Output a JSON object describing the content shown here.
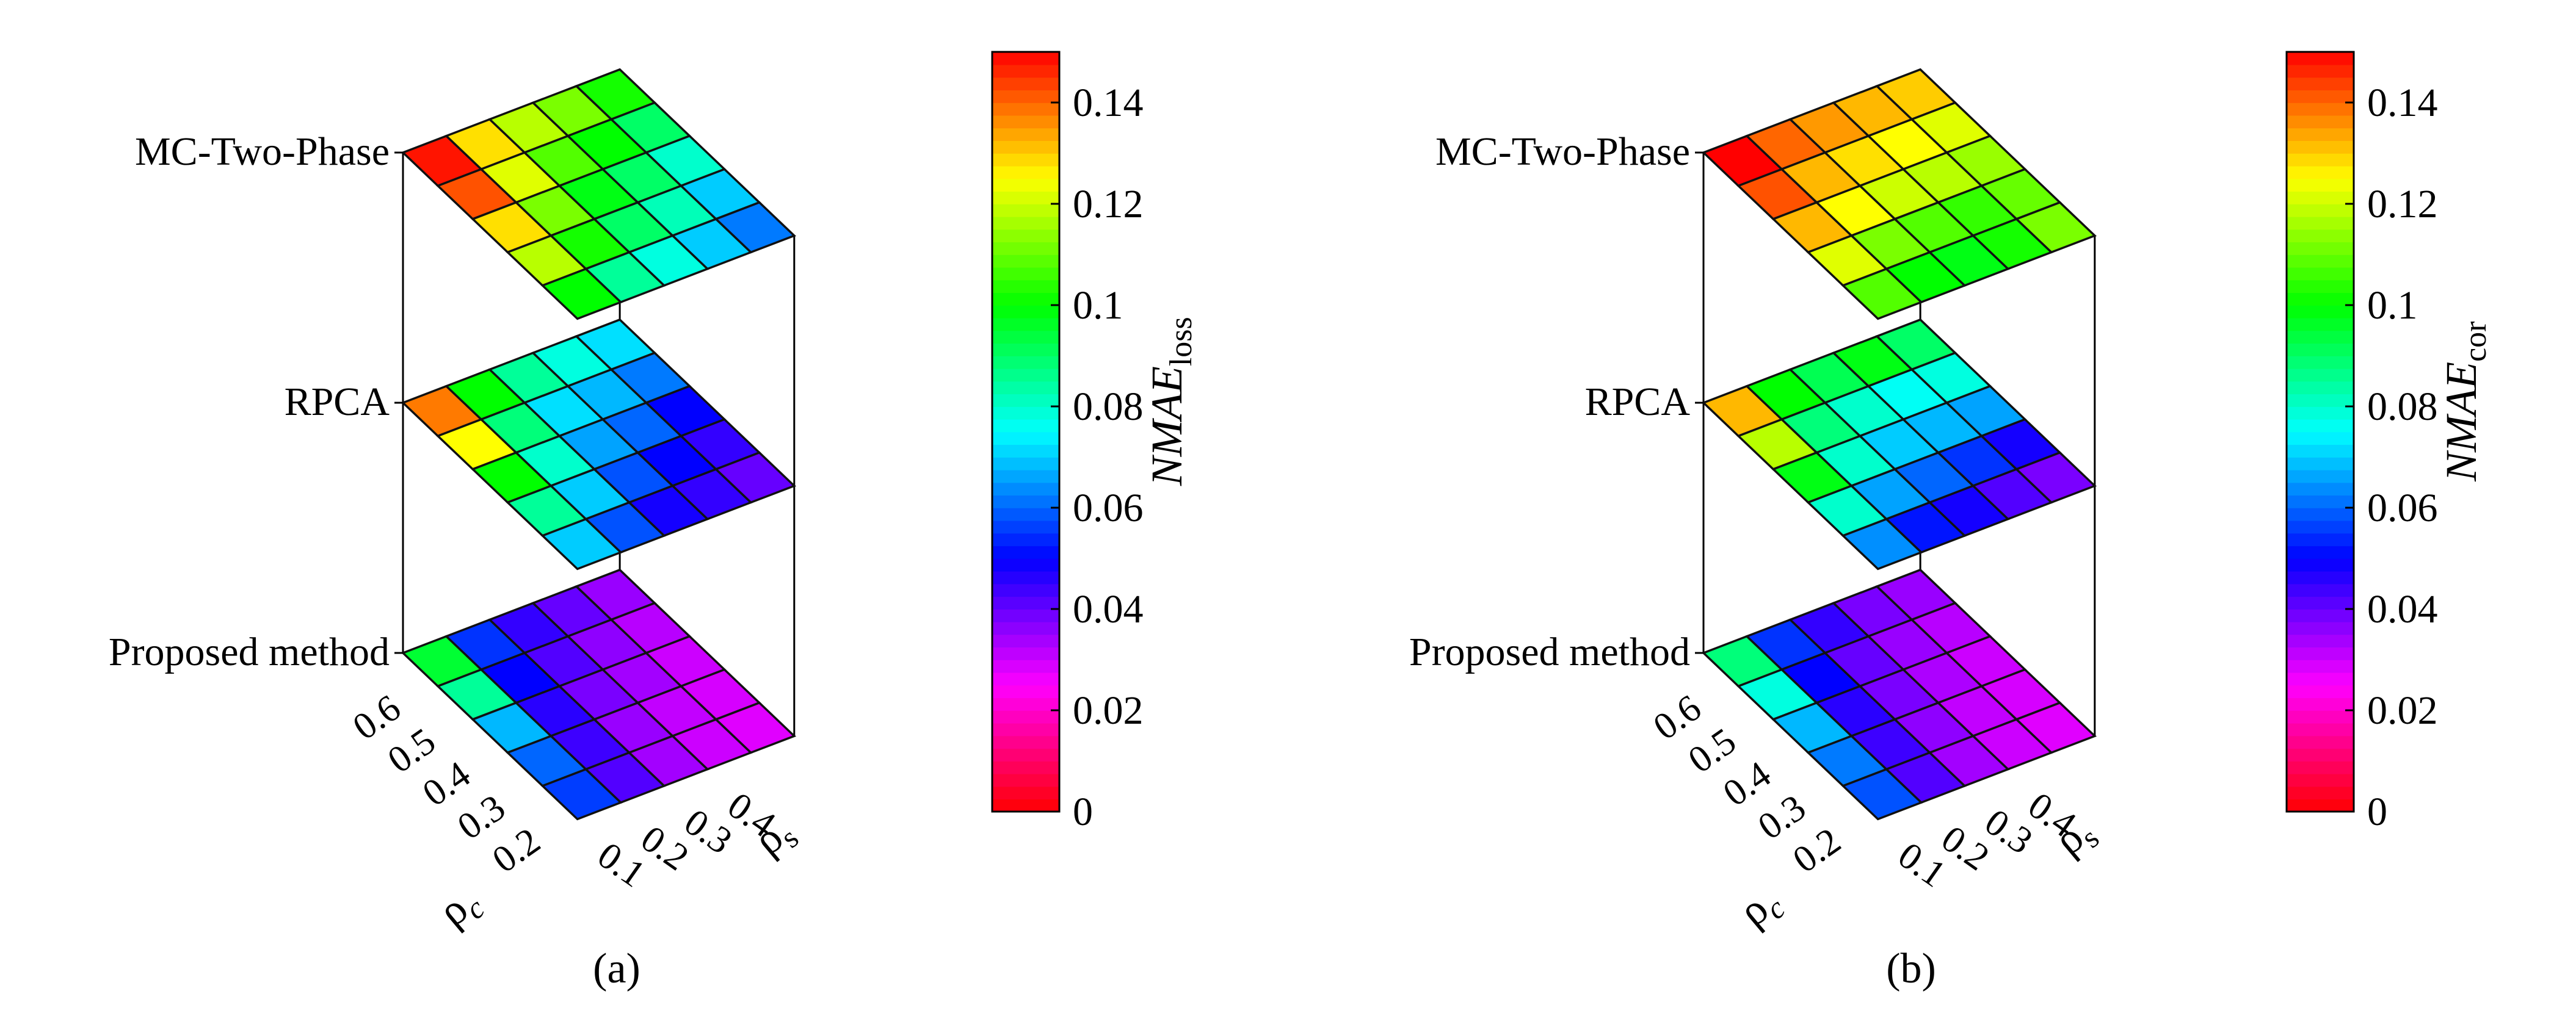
{
  "chart_data": [
    {
      "type": "heatmap",
      "subtitle": "(a)",
      "x_label": "ρ",
      "x_label_sub": "s",
      "y_label": "ρ",
      "y_label_sub": "c",
      "x_ticks": [
        "0.1",
        "0.2",
        "0.3",
        "0.4"
      ],
      "y_ticks": [
        "0.2",
        "0.3",
        "0.4",
        "0.5",
        "0.6"
      ],
      "colorbar": {
        "label": "NMAE",
        "label_sub": "loss",
        "range": [
          0,
          0.15
        ],
        "ticks": [
          "0",
          "0.02",
          "0.04",
          "0.06",
          "0.08",
          "0.1",
          "0.12",
          "0.14"
        ]
      },
      "layers": [
        {
          "name": "MC-Two-Phase",
          "note": "rows: rho_c 0.6 to 0.2; cols: rho_s 0.1 to 0.5",
          "values": [
            [
              0.148,
              0.128,
              0.118,
              0.112,
              0.102
            ],
            [
              0.142,
              0.122,
              0.108,
              0.1,
              0.09
            ],
            [
              0.128,
              0.112,
              0.098,
              0.09,
              0.08
            ],
            [
              0.118,
              0.102,
              0.09,
              0.082,
              0.07
            ],
            [
              0.1,
              0.085,
              0.078,
              0.07,
              0.062
            ]
          ]
        },
        {
          "name": "RPCA",
          "values": [
            [
              0.138,
              0.1,
              0.085,
              0.078,
              0.072
            ],
            [
              0.125,
              0.088,
              0.072,
              0.068,
              0.062
            ],
            [
              0.1,
              0.08,
              0.066,
              0.06,
              0.05
            ],
            [
              0.085,
              0.07,
              0.058,
              0.05,
              0.045
            ],
            [
              0.07,
              0.058,
              0.048,
              0.045,
              0.04
            ]
          ]
        },
        {
          "name": "Proposed method",
          "values": [
            [
              0.095,
              0.055,
              0.045,
              0.04,
              0.035
            ],
            [
              0.085,
              0.05,
              0.042,
              0.036,
              0.032
            ],
            [
              0.068,
              0.046,
              0.038,
              0.034,
              0.03
            ],
            [
              0.06,
              0.044,
              0.035,
              0.031,
              0.029
            ],
            [
              0.056,
              0.042,
              0.034,
              0.03,
              0.028
            ]
          ]
        }
      ]
    },
    {
      "type": "heatmap",
      "subtitle": "(b)",
      "x_label": "ρ",
      "x_label_sub": "s",
      "y_label": "ρ",
      "y_label_sub": "c",
      "x_ticks": [
        "0.1",
        "0.2",
        "0.3",
        "0.4"
      ],
      "y_ticks": [
        "0.2",
        "0.3",
        "0.4",
        "0.5",
        "0.6"
      ],
      "colorbar": {
        "label": "NMAE",
        "label_sub": "cor",
        "range": [
          0,
          0.15
        ],
        "ticks": [
          "0",
          "0.02",
          "0.04",
          "0.06",
          "0.08",
          "0.1",
          "0.12",
          "0.14"
        ]
      },
      "layers": [
        {
          "name": "MC-Two-Phase",
          "values": [
            [
              0.15,
              0.14,
              0.135,
              0.132,
              0.13
            ],
            [
              0.142,
              0.132,
              0.128,
              0.125,
              0.122
            ],
            [
              0.132,
              0.125,
              0.12,
              0.118,
              0.115
            ],
            [
              0.122,
              0.112,
              0.108,
              0.105,
              0.11
            ],
            [
              0.108,
              0.1,
              0.098,
              0.102,
              0.112
            ]
          ]
        },
        {
          "name": "RPCA",
          "values": [
            [
              0.132,
              0.1,
              0.092,
              0.098,
              0.09
            ],
            [
              0.118,
              0.088,
              0.08,
              0.076,
              0.078
            ],
            [
              0.098,
              0.08,
              0.07,
              0.068,
              0.066
            ],
            [
              0.08,
              0.066,
              0.06,
              0.055,
              0.048
            ],
            [
              0.064,
              0.052,
              0.048,
              0.042,
              0.038
            ]
          ]
        },
        {
          "name": "Proposed method",
          "values": [
            [
              0.088,
              0.055,
              0.045,
              0.038,
              0.035
            ],
            [
              0.078,
              0.05,
              0.04,
              0.035,
              0.032
            ],
            [
              0.068,
              0.046,
              0.038,
              0.033,
              0.03
            ],
            [
              0.062,
              0.044,
              0.036,
              0.031,
              0.029
            ],
            [
              0.058,
              0.042,
              0.034,
              0.03,
              0.028
            ]
          ]
        }
      ]
    }
  ]
}
